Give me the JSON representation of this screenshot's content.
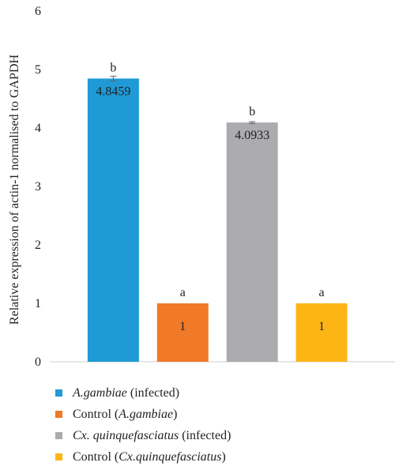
{
  "chart_data": {
    "type": "bar",
    "ylabel": "Relative expression of actin-1 normalised to GAPDH",
    "ylim": [
      0,
      6
    ],
    "yticks": [
      "0",
      "1",
      "2",
      "3",
      "4",
      "5",
      "6"
    ],
    "grid": false,
    "legend_position": "bottom",
    "series": [
      {
        "name": "A.gambiae (infected)",
        "value": 4.8459,
        "error": 0.04,
        "value_label": "4.8459",
        "letter": "b",
        "color": "#1f9ad6"
      },
      {
        "name": "Control (A.gambiae)",
        "value": 1,
        "error": 0,
        "value_label": "1",
        "letter": "a",
        "color": "#f07a28"
      },
      {
        "name": "Cx. quinquefasciatus (infected)",
        "value": 4.0933,
        "error": 0.015,
        "value_label": "4.0933",
        "letter": "b",
        "color": "#ababb0"
      },
      {
        "name": "Control (Cx.quinquefasciatus)",
        "value": 1,
        "error": 0,
        "value_label": "1",
        "letter": "a",
        "color": "#fdb515"
      }
    ]
  },
  "legend": [
    {
      "pre": "",
      "ital": "A.gambiae",
      "post": " (infected)"
    },
    {
      "pre": "Control (",
      "ital": "A.gambiae",
      "post": ")"
    },
    {
      "pre": "",
      "ital": "Cx. quinquefasciatus",
      "post": " (infected)"
    },
    {
      "pre": "Control (",
      "ital": "Cx.quinquefasciatus",
      "post": ")"
    }
  ]
}
